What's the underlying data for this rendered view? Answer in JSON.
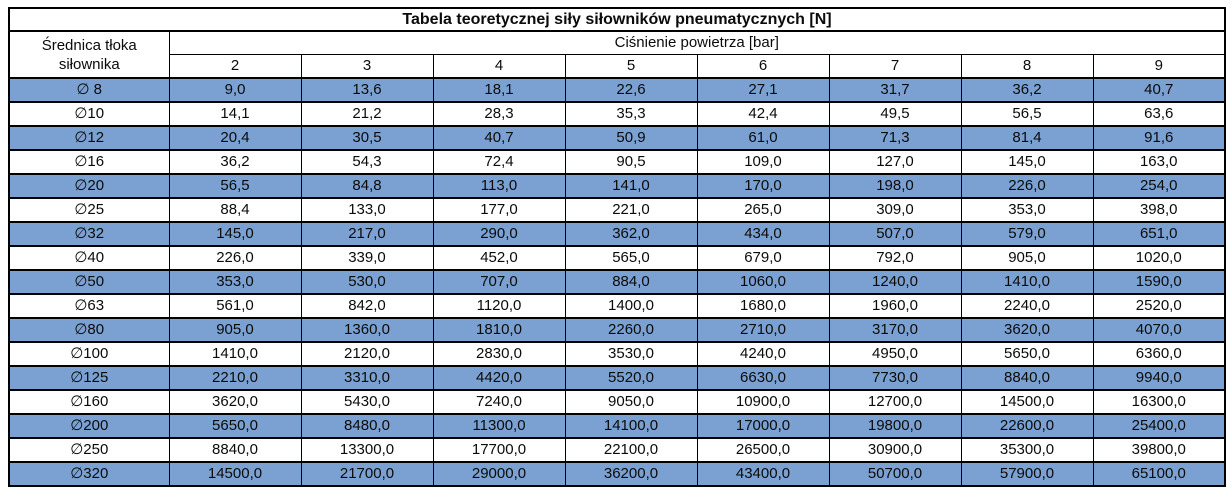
{
  "colors": {
    "row_highlight": "#7AA1D2",
    "border": "#000000",
    "background": "#FFFFFF"
  },
  "chart_data": {
    "type": "table",
    "title": "Tabela teoretycznej siły siłowników pneumatycznych [N]",
    "row_header_label": "Średnica tłoka siłownika",
    "column_group_label": "Ciśnienie powietrza [bar]",
    "columns": [
      "2",
      "3",
      "4",
      "5",
      "6",
      "7",
      "8",
      "9"
    ],
    "rows": [
      {
        "diameter": "∅ 8",
        "highlighted": true,
        "values": [
          "9,0",
          "13,6",
          "18,1",
          "22,6",
          "27,1",
          "31,7",
          "36,2",
          "40,7"
        ]
      },
      {
        "diameter": "∅10",
        "highlighted": false,
        "values": [
          "14,1",
          "21,2",
          "28,3",
          "35,3",
          "42,4",
          "49,5",
          "56,5",
          "63,6"
        ]
      },
      {
        "diameter": "∅12",
        "highlighted": true,
        "values": [
          "20,4",
          "30,5",
          "40,7",
          "50,9",
          "61,0",
          "71,3",
          "81,4",
          "91,6"
        ]
      },
      {
        "diameter": "∅16",
        "highlighted": false,
        "values": [
          "36,2",
          "54,3",
          "72,4",
          "90,5",
          "109,0",
          "127,0",
          "145,0",
          "163,0"
        ]
      },
      {
        "diameter": "∅20",
        "highlighted": true,
        "values": [
          "56,5",
          "84,8",
          "113,0",
          "141,0",
          "170,0",
          "198,0",
          "226,0",
          "254,0"
        ]
      },
      {
        "diameter": "∅25",
        "highlighted": false,
        "values": [
          "88,4",
          "133,0",
          "177,0",
          "221,0",
          "265,0",
          "309,0",
          "353,0",
          "398,0"
        ]
      },
      {
        "diameter": "∅32",
        "highlighted": true,
        "values": [
          "145,0",
          "217,0",
          "290,0",
          "362,0",
          "434,0",
          "507,0",
          "579,0",
          "651,0"
        ]
      },
      {
        "diameter": "∅40",
        "highlighted": false,
        "values": [
          "226,0",
          "339,0",
          "452,0",
          "565,0",
          "679,0",
          "792,0",
          "905,0",
          "1020,0"
        ]
      },
      {
        "diameter": "∅50",
        "highlighted": true,
        "values": [
          "353,0",
          "530,0",
          "707,0",
          "884,0",
          "1060,0",
          "1240,0",
          "1410,0",
          "1590,0"
        ]
      },
      {
        "diameter": "∅63",
        "highlighted": false,
        "values": [
          "561,0",
          "842,0",
          "1120,0",
          "1400,0",
          "1680,0",
          "1960,0",
          "2240,0",
          "2520,0"
        ]
      },
      {
        "diameter": "∅80",
        "highlighted": true,
        "values": [
          "905,0",
          "1360,0",
          "1810,0",
          "2260,0",
          "2710,0",
          "3170,0",
          "3620,0",
          "4070,0"
        ]
      },
      {
        "diameter": "∅100",
        "highlighted": false,
        "values": [
          "1410,0",
          "2120,0",
          "2830,0",
          "3530,0",
          "4240,0",
          "4950,0",
          "5650,0",
          "6360,0"
        ]
      },
      {
        "diameter": "∅125",
        "highlighted": true,
        "values": [
          "2210,0",
          "3310,0",
          "4420,0",
          "5520,0",
          "6630,0",
          "7730,0",
          "8840,0",
          "9940,0"
        ]
      },
      {
        "diameter": "∅160",
        "highlighted": false,
        "values": [
          "3620,0",
          "5430,0",
          "7240,0",
          "9050,0",
          "10900,0",
          "12700,0",
          "14500,0",
          "16300,0"
        ]
      },
      {
        "diameter": "∅200",
        "highlighted": true,
        "values": [
          "5650,0",
          "8480,0",
          "11300,0",
          "14100,0",
          "17000,0",
          "19800,0",
          "22600,0",
          "25400,0"
        ]
      },
      {
        "diameter": "∅250",
        "highlighted": false,
        "values": [
          "8840,0",
          "13300,0",
          "17700,0",
          "22100,0",
          "26500,0",
          "30900,0",
          "35300,0",
          "39800,0"
        ]
      },
      {
        "diameter": "∅320",
        "highlighted": true,
        "values": [
          "14500,0",
          "21700,0",
          "29000,0",
          "36200,0",
          "43400,0",
          "50700,0",
          "57900,0",
          "65100,0"
        ]
      }
    ]
  }
}
